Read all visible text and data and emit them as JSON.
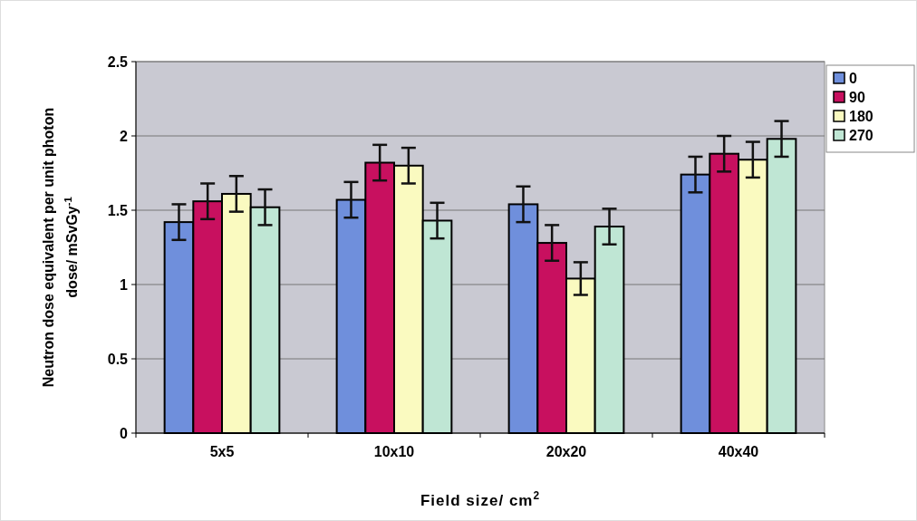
{
  "chart_data": {
    "type": "bar",
    "xlabel": "Field size/ cm$^{2}$",
    "ylabel": "Neutron dose equivalent per unit photon dose/ mSvGy$^{-1}$",
    "categories": [
      "5x5",
      "10x10",
      "20x20",
      "40x40"
    ],
    "series": [
      {
        "name": "0",
        "color": "#6f8fdc",
        "values": [
          1.42,
          1.57,
          1.54,
          1.74
        ],
        "errors": [
          0.12,
          0.12,
          0.12,
          0.12
        ]
      },
      {
        "name": "90",
        "color": "#c8105f",
        "values": [
          1.56,
          1.82,
          1.28,
          1.88
        ],
        "errors": [
          0.12,
          0.12,
          0.12,
          0.12
        ]
      },
      {
        "name": "180",
        "color": "#fafac0",
        "values": [
          1.61,
          1.8,
          1.04,
          1.84
        ],
        "errors": [
          0.12,
          0.12,
          0.11,
          0.12
        ]
      },
      {
        "name": "270",
        "color": "#bfe6d4",
        "values": [
          1.52,
          1.43,
          1.39,
          1.98
        ],
        "errors": [
          0.12,
          0.12,
          0.12,
          0.12
        ]
      }
    ],
    "ylim": [
      0,
      2.5
    ],
    "yticks": [
      0,
      0.5,
      1,
      1.5,
      2,
      2.5
    ],
    "grid": "y",
    "legend": "top right"
  }
}
